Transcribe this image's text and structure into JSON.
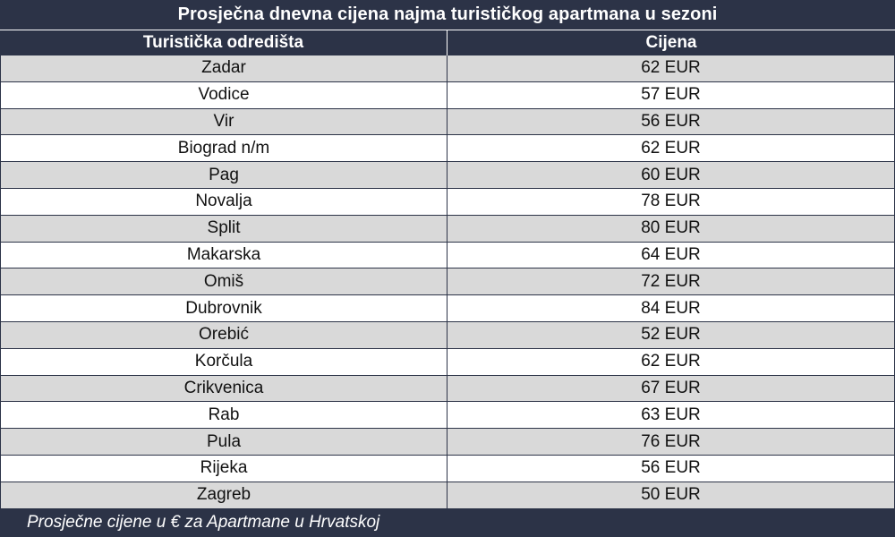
{
  "title": "Prosječna dnevna cijena najma turističkog apartmana u sezoni",
  "columns": {
    "destination": "Turistička odredišta",
    "price": "Cijena"
  },
  "rows": [
    {
      "destination": "Zadar",
      "price": "62 EUR"
    },
    {
      "destination": "Vodice",
      "price": "57 EUR"
    },
    {
      "destination": "Vir",
      "price": "56 EUR"
    },
    {
      "destination": "Biograd n/m",
      "price": "62 EUR"
    },
    {
      "destination": "Pag",
      "price": "60 EUR"
    },
    {
      "destination": "Novalja",
      "price": "78 EUR"
    },
    {
      "destination": "Split",
      "price": "80 EUR"
    },
    {
      "destination": "Makarska",
      "price": "64 EUR"
    },
    {
      "destination": "Omiš",
      "price": "72 EUR"
    },
    {
      "destination": "Dubrovnik",
      "price": "84 EUR"
    },
    {
      "destination": "Orebić",
      "price": "52 EUR"
    },
    {
      "destination": "Korčula",
      "price": "62 EUR"
    },
    {
      "destination": "Crikvenica",
      "price": "67 EUR"
    },
    {
      "destination": "Rab",
      "price": "63 EUR"
    },
    {
      "destination": "Pula",
      "price": "76 EUR"
    },
    {
      "destination": "Rijeka",
      "price": "56 EUR"
    },
    {
      "destination": "Zagreb",
      "price": "50 EUR"
    }
  ],
  "footer": "Prosječne cijene u € za Apartmane u Hrvatskoj",
  "colors": {
    "header_bg": "#2c3347",
    "row_shaded": "#d9d9d9",
    "row_plain": "#ffffff"
  }
}
